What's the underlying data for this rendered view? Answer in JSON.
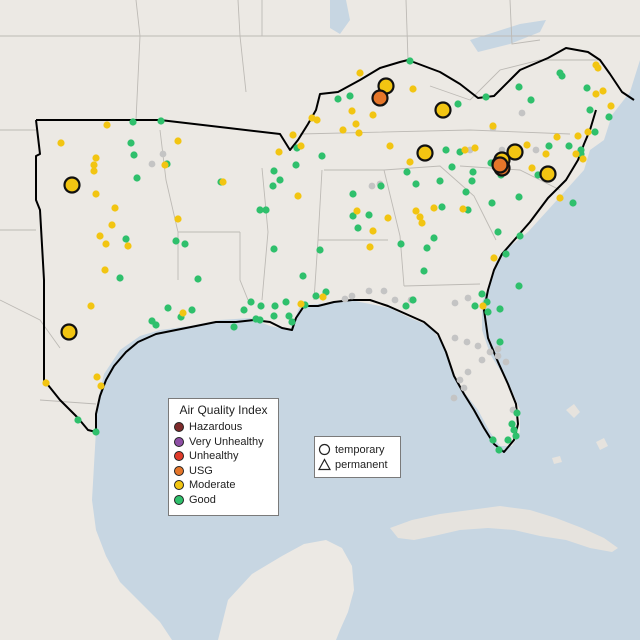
{
  "map": {
    "region": "southeastern-united-states",
    "colors": {
      "water": "#c7d6e2",
      "land": "#ece9e4",
      "land_foreign": "#e6e3de",
      "state_border": "#bdbab5",
      "region_outline": "#000000",
      "Hazardous": "#7e2b2b",
      "Very Unhealthy": "#8e4fa5",
      "Unhealthy": "#e03b2a",
      "USG": "#e5762a",
      "Moderate": "#f2c512",
      "Good": "#2fc06c",
      "No data": "#c4c4c4"
    }
  },
  "legend": {
    "title": "Air Quality Index",
    "items": [
      {
        "label": "Hazardous",
        "color": "#7e2b2b"
      },
      {
        "label": "Very Unhealthy",
        "color": "#8e4fa5"
      },
      {
        "label": "Unhealthy",
        "color": "#e03b2a"
      },
      {
        "label": "USG",
        "color": "#e5762a"
      },
      {
        "label": "Moderate",
        "color": "#f2c512"
      },
      {
        "label": "Good",
        "color": "#2fc06c"
      }
    ]
  },
  "monitor_legend": {
    "temporary_label": "temporary",
    "permanent_label": "permanent"
  },
  "highlighted_monitor_counts": {
    "Moderate": 9,
    "USG": 3
  },
  "small_monitor_counts": {
    "Moderate": 64,
    "Good": 107,
    "No data": 30
  }
}
